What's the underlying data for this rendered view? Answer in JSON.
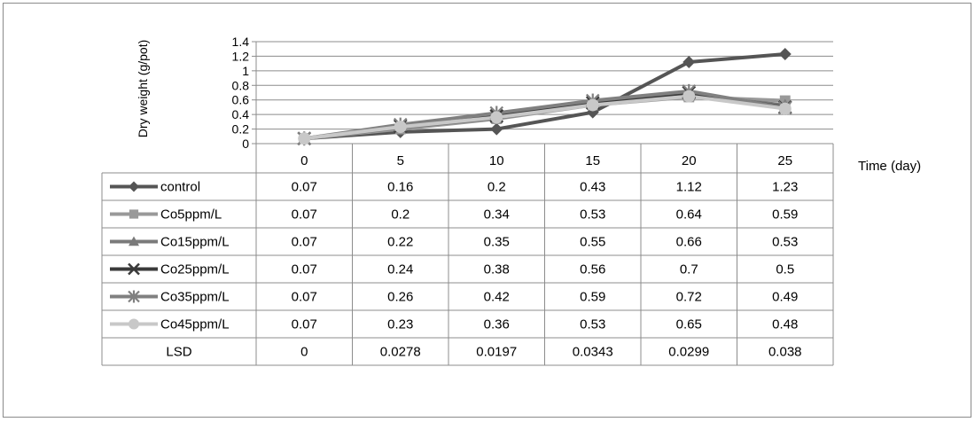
{
  "chart_data": {
    "type": "line",
    "title": "",
    "xlabel": "Time (day)",
    "ylabel": "Dry weight (g/pot)",
    "categories": [
      "0",
      "5",
      "10",
      "15",
      "20",
      "25"
    ],
    "ylim": [
      0,
      1.4
    ],
    "yticks": [
      "0",
      "0.2",
      "0.4",
      "0.6",
      "0.8",
      "1",
      "1.2",
      "1.4"
    ],
    "grid": true,
    "legend_placement": "data table (left column)",
    "series": [
      {
        "name": "control",
        "values": [
          0.07,
          0.16,
          0.2,
          0.43,
          1.12,
          1.23
        ],
        "color": "#555555",
        "marker": "diamond"
      },
      {
        "name": "Co5ppm/L",
        "values": [
          0.07,
          0.2,
          0.34,
          0.53,
          0.64,
          0.59
        ],
        "color": "#999999",
        "marker": "square"
      },
      {
        "name": "Co15ppm/L",
        "values": [
          0.07,
          0.22,
          0.35,
          0.55,
          0.66,
          0.53
        ],
        "color": "#7a7a7a",
        "marker": "triangle"
      },
      {
        "name": "Co25ppm/L",
        "values": [
          0.07,
          0.24,
          0.38,
          0.56,
          0.7,
          0.5
        ],
        "color": "#3a3a3a",
        "marker": "x"
      },
      {
        "name": "Co35ppm/L",
        "values": [
          0.07,
          0.26,
          0.42,
          0.59,
          0.72,
          0.49
        ],
        "color": "#808080",
        "marker": "star"
      },
      {
        "name": "Co45ppm/L",
        "values": [
          0.07,
          0.23,
          0.36,
          0.53,
          0.65,
          0.48
        ],
        "color": "#c8c8c8",
        "marker": "circle"
      }
    ],
    "lsd": {
      "name": "LSD",
      "values": [
        "0",
        "0.0278",
        "0.0197",
        "0.0343",
        "0.0299",
        "0.038"
      ]
    },
    "table_values": [
      [
        "0.07",
        "0.16",
        "0.2",
        "0.43",
        "1.12",
        "1.23"
      ],
      [
        "0.07",
        "0.2",
        "0.34",
        "0.53",
        "0.64",
        "0.59"
      ],
      [
        "0.07",
        "0.22",
        "0.35",
        "0.55",
        "0.66",
        "0.53"
      ],
      [
        "0.07",
        "0.24",
        "0.38",
        "0.56",
        "0.7",
        "0.5"
      ],
      [
        "0.07",
        "0.26",
        "0.42",
        "0.59",
        "0.72",
        "0.49"
      ],
      [
        "0.07",
        "0.23",
        "0.36",
        "0.53",
        "0.65",
        "0.48"
      ]
    ]
  }
}
